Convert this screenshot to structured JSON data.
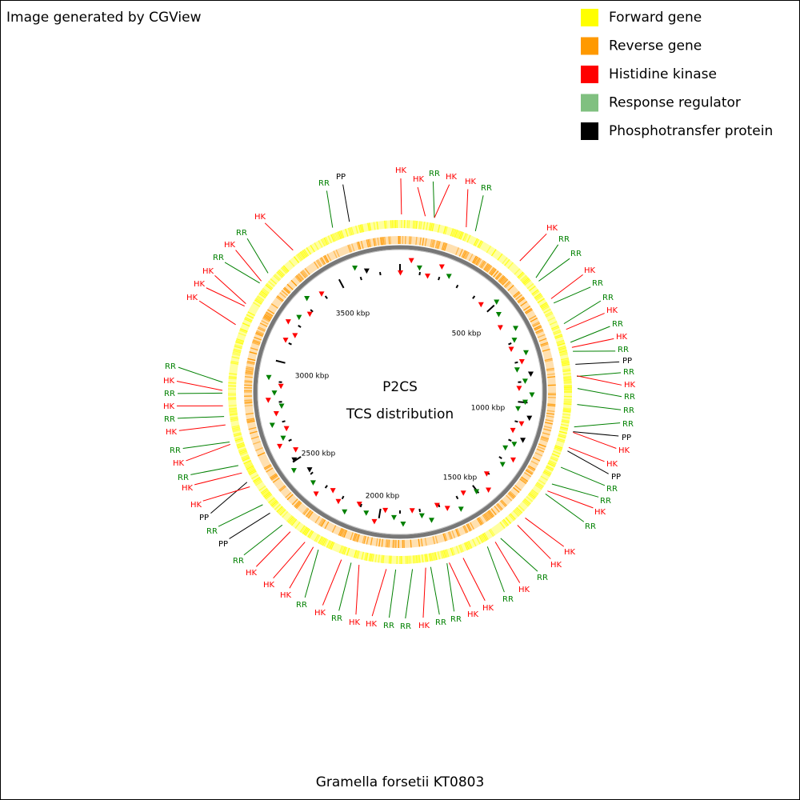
{
  "header": {
    "credit": "Image generated by CGView"
  },
  "legend": [
    {
      "label": "Forward gene",
      "color": "#ffff00"
    },
    {
      "label": "Reverse gene",
      "color": "#ff9900"
    },
    {
      "label": "Histidine kinase",
      "color": "#ff0000"
    },
    {
      "label": "Response regulator",
      "color": "#80c080"
    },
    {
      "label": "Phosphotransfer protein",
      "color": "#000000"
    }
  ],
  "center": {
    "title": "P2CS",
    "subtitle": "TCS distribution"
  },
  "scale_labels": [
    "500 kbp",
    "1000 kbp",
    "1500 kbp",
    "2000 kbp",
    "2500 kbp",
    "3000 kbp",
    "3500 kbp"
  ],
  "label_colors": {
    "HK": "#ff0000",
    "RR": "#008000",
    "PP": "#000000"
  },
  "tcs_labels": [
    "RR",
    "PP",
    "HK",
    "HK",
    "RR",
    "HK",
    "HK",
    "RR",
    "HK",
    "RR",
    "RR",
    "HK",
    "RR",
    "RR",
    "HK",
    "RR",
    "HK",
    "RR",
    "PP",
    "RR",
    "HK",
    "RR",
    "RR",
    "RR",
    "PP",
    "HK",
    "HK",
    "PP",
    "RR",
    "RR",
    "HK",
    "RR",
    "HK",
    "HK",
    "RR",
    "HK",
    "RR",
    "HK",
    "HK",
    "RR",
    "RR",
    "HK",
    "RR",
    "RR",
    "HK",
    "HK",
    "RR",
    "HK",
    "RR",
    "HK",
    "HK",
    "HK",
    "RR",
    "PP",
    "RR",
    "PP",
    "HK",
    "HK",
    "RR",
    "HK",
    "RR",
    "HK",
    "RR",
    "HK",
    "RR",
    "HK",
    "RR",
    "HK",
    "HK",
    "HK",
    "RR",
    "HK",
    "RR",
    "HK"
  ],
  "footer": {
    "organism": "Gramella forsetii KT0803"
  }
}
